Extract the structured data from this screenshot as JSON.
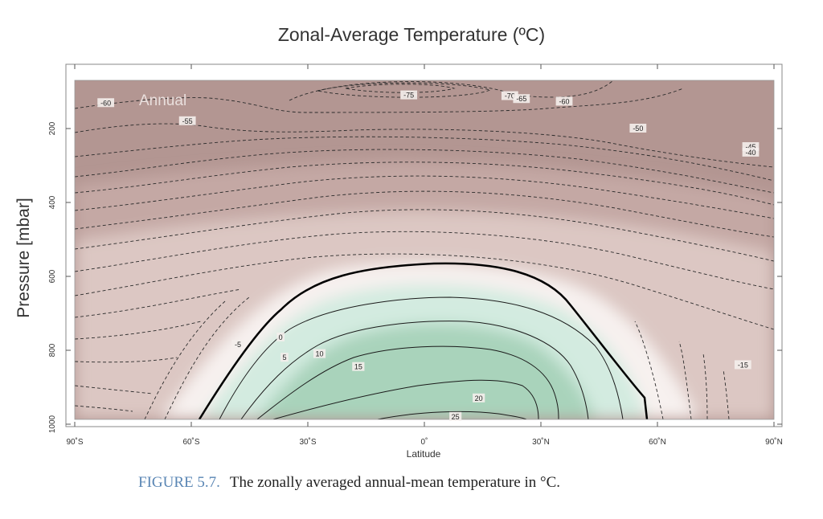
{
  "chart_data": {
    "type": "contour",
    "title": "Zonal-Average Temperature (ºC)",
    "panel_label": "Annual",
    "xlabel": "Latitude",
    "ylabel": "Pressure [mbar]",
    "xlim": [
      -90,
      90
    ],
    "ylim": [
      1000,
      80
    ],
    "x_ticks": [
      -90,
      -60,
      -30,
      0,
      30,
      60,
      90
    ],
    "x_tick_labels": [
      "90˚S",
      "60˚S",
      "30˚S",
      "0˚",
      "30˚N",
      "60˚N",
      "90˚N"
    ],
    "y_ticks": [
      200,
      400,
      600,
      800,
      1000
    ],
    "y_tick_labels": [
      "200",
      "400",
      "600",
      "800",
      "1000"
    ],
    "contour_interval": 5,
    "contour_labels": [
      {
        "text": "-75",
        "x": -4,
        "y": 110
      },
      {
        "text": "-70",
        "x": 22,
        "y": 112
      },
      {
        "text": "-65",
        "x": 25,
        "y": 120
      },
      {
        "text": "-60",
        "x": 36,
        "y": 127
      },
      {
        "text": "-60",
        "x": -82,
        "y": 131
      },
      {
        "text": "-55",
        "x": -61,
        "y": 180
      },
      {
        "text": "-50",
        "x": 55,
        "y": 200
      },
      {
        "text": "-45",
        "x": 84,
        "y": 250
      },
      {
        "text": "-40",
        "x": 84,
        "y": 265
      },
      {
        "text": "-15",
        "x": 82,
        "y": 840
      },
      {
        "text": "-5",
        "x": -48,
        "y": 785
      },
      {
        "text": "0",
        "x": -37,
        "y": 765
      },
      {
        "text": "5",
        "x": -36,
        "y": 820
      },
      {
        "text": "10",
        "x": -27,
        "y": 810
      },
      {
        "text": "15",
        "x": -17,
        "y": 845
      },
      {
        "text": "20",
        "x": 14,
        "y": 930
      },
      {
        "text": "25",
        "x": 8,
        "y": 980
      }
    ],
    "colors": {
      "cold": "#b39692",
      "cool": "#c4a8a4",
      "mild": "#dcc7c3",
      "near_zero": "#f7f1ef",
      "warm": "#d3ebe0",
      "hot": "#a9d3bb",
      "zero_contour": "#000000"
    },
    "grid": false
  },
  "caption": {
    "label": "FIGURE 5.7.",
    "text": "The zonally averaged annual-mean temperature in °C."
  }
}
